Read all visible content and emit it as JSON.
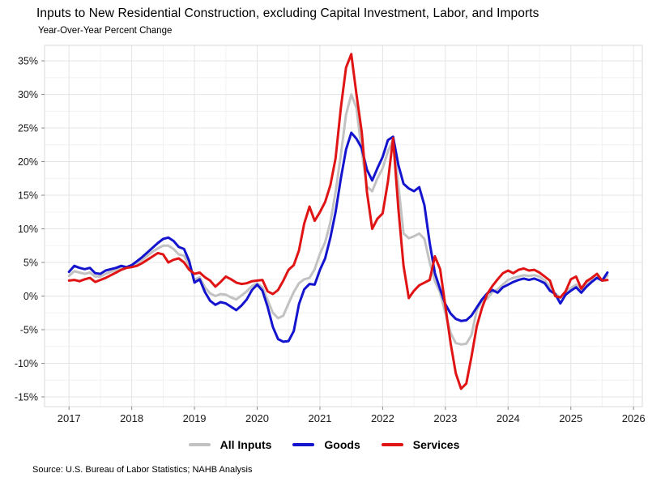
{
  "header": {
    "title": "Inputs to New Residential Construction, excluding Capital Investment, Labor, and Imports",
    "subtitle": "Year-Over-Year Percent Change"
  },
  "footer": {
    "source": "Source: U.S. Bureau of Labor Statistics; NAHB Analysis"
  },
  "legend": [
    {
      "label": "All Inputs",
      "color": "#c2c2c2"
    },
    {
      "label": "Goods",
      "color": "#1414cf"
    },
    {
      "label": "Services",
      "color": "#e01414"
    }
  ],
  "chart_data": {
    "type": "line",
    "title": "Inputs to New Residential Construction, excluding Capital Investment, Labor, and Imports",
    "subtitle": "Year-Over-Year Percent Change",
    "x_start": "2017-01",
    "frequency": "monthly",
    "x_tick_years": [
      2017,
      2018,
      2019,
      2020,
      2021,
      2022,
      2023,
      2024,
      2025,
      2026
    ],
    "y_ticks": [
      35,
      30,
      25,
      20,
      15,
      10,
      5,
      0,
      -5,
      -10,
      -15
    ],
    "y_tick_suffix": "%",
    "xlim_years": [
      2016.61,
      2026.14
    ],
    "ylim": [
      -16.45,
      37.3
    ],
    "grid": {
      "major_color": "#e4e4e4",
      "minor_color": "#f2f2f2",
      "y_major_step": 5,
      "y_minor_step": 2.5,
      "x_minor_step_years": 0.5,
      "border_color": "#d9d9d9",
      "tick_color": "#8a8a8a"
    },
    "legend_position": "bottom-center",
    "series": [
      {
        "name": "All Inputs",
        "color": "#c2c2c2",
        "values": [
          3.0,
          3.7,
          3.5,
          3.3,
          3.5,
          2.9,
          2.9,
          3.3,
          3.6,
          3.9,
          4.3,
          4.3,
          4.4,
          4.9,
          5.4,
          6.0,
          6.6,
          7.1,
          7.5,
          7.5,
          7.0,
          6.2,
          6.0,
          4.5,
          2.4,
          2.8,
          1.3,
          0.4,
          0.0,
          0.3,
          0.2,
          -0.2,
          -0.5,
          0.1,
          0.7,
          1.5,
          1.9,
          1.3,
          -0.6,
          -2.5,
          -3.3,
          -2.9,
          -1.1,
          0.6,
          1.9,
          2.5,
          2.7,
          4.0,
          6.3,
          8.0,
          11.0,
          15.5,
          21.0,
          27.0,
          30.0,
          28.0,
          21.5,
          16.3,
          15.6,
          17.5,
          19.0,
          21.5,
          23.3,
          16.5,
          9.3,
          8.6,
          8.9,
          9.3,
          8.5,
          5.0,
          2.2,
          0.5,
          -2.5,
          -5.5,
          -7.0,
          -7.2,
          -7.1,
          -5.8,
          -2.1,
          -0.8,
          -0.4,
          0.6,
          1.0,
          1.7,
          2.4,
          2.7,
          2.9,
          3.1,
          3.0,
          3.1,
          2.9,
          2.3,
          1.4,
          0.4,
          -0.3,
          0.6,
          1.2,
          1.7,
          1.0,
          1.8,
          2.3,
          2.8,
          2.4,
          3.0
        ]
      },
      {
        "name": "Goods",
        "color": "#1414cf",
        "values": [
          3.6,
          4.5,
          4.2,
          4.0,
          4.2,
          3.4,
          3.3,
          3.8,
          4.0,
          4.2,
          4.5,
          4.3,
          4.6,
          5.2,
          5.8,
          6.5,
          7.2,
          7.9,
          8.5,
          8.7,
          8.2,
          7.3,
          7.0,
          5.2,
          2.0,
          2.5,
          0.6,
          -0.7,
          -1.3,
          -0.9,
          -1.1,
          -1.6,
          -2.1,
          -1.4,
          -0.5,
          0.9,
          1.7,
          0.8,
          -1.6,
          -4.6,
          -6.4,
          -6.8,
          -6.7,
          -5.2,
          -1.2,
          1.0,
          1.8,
          1.7,
          3.9,
          5.6,
          8.7,
          12.5,
          17.5,
          21.8,
          24.3,
          23.4,
          22.0,
          18.8,
          17.2,
          19.0,
          20.7,
          23.2,
          23.7,
          19.5,
          16.7,
          16.0,
          15.6,
          16.2,
          13.5,
          7.9,
          3.4,
          1.0,
          -1.2,
          -2.6,
          -3.4,
          -3.7,
          -3.6,
          -2.9,
          -1.7,
          -0.5,
          0.4,
          0.9,
          0.5,
          1.3,
          1.7,
          2.1,
          2.4,
          2.6,
          2.4,
          2.6,
          2.3,
          1.9,
          0.8,
          0.3,
          -1.1,
          0.2,
          0.8,
          1.3,
          0.5,
          1.4,
          2.1,
          2.7,
          2.3,
          3.5
        ]
      },
      {
        "name": "Services",
        "color": "#e01414",
        "values": [
          2.3,
          2.4,
          2.2,
          2.5,
          2.7,
          2.1,
          2.4,
          2.7,
          3.1,
          3.5,
          3.9,
          4.2,
          4.3,
          4.5,
          4.9,
          5.4,
          5.9,
          6.4,
          6.2,
          5.0,
          5.4,
          5.6,
          5.0,
          3.9,
          3.3,
          3.5,
          2.8,
          2.3,
          1.4,
          2.1,
          2.9,
          2.5,
          2.0,
          1.8,
          1.9,
          2.2,
          2.3,
          2.4,
          0.7,
          0.3,
          0.9,
          2.3,
          3.9,
          4.6,
          6.8,
          10.8,
          13.3,
          11.2,
          12.5,
          14.0,
          16.5,
          20.5,
          28.0,
          34.0,
          36.0,
          30.0,
          24.4,
          15.5,
          10.0,
          11.5,
          12.3,
          17.0,
          23.5,
          13.0,
          4.5,
          -0.3,
          0.8,
          1.6,
          2.0,
          2.4,
          5.9,
          4.0,
          -1.5,
          -7.0,
          -11.5,
          -13.8,
          -13.0,
          -9.0,
          -4.5,
          -1.8,
          0.3,
          1.5,
          2.5,
          3.4,
          3.8,
          3.4,
          3.9,
          4.1,
          3.8,
          3.9,
          3.5,
          2.9,
          2.3,
          0.0,
          -0.2,
          0.7,
          2.5,
          2.9,
          1.1,
          2.2,
          2.7,
          3.3,
          2.3,
          2.4
        ]
      }
    ]
  }
}
